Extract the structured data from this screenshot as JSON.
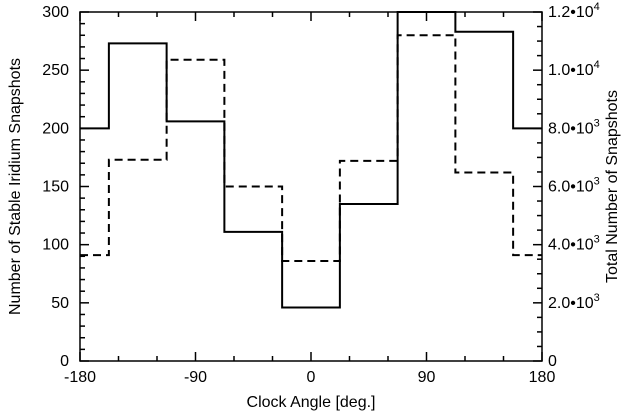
{
  "chart_data": {
    "type": "histogram",
    "xlabel": "Clock Angle [deg.]",
    "ylabel": "Number of Stable Iridium Snapshots",
    "y2label": "Total Number of Snapshots",
    "xlim": [
      -180,
      180
    ],
    "ylim": [
      0,
      300
    ],
    "y2lim": [
      0,
      12000
    ],
    "xticks": [
      -180,
      -90,
      0,
      90,
      180
    ],
    "xtick_labels": [
      "-180",
      "-90",
      "0",
      "90",
      "180"
    ],
    "yticks": [
      0,
      50,
      100,
      150,
      200,
      250,
      300
    ],
    "ytick_labels": [
      "0",
      "50",
      "100",
      "150",
      "200",
      "250",
      "300"
    ],
    "y2ticks": [
      0,
      2000,
      4000,
      6000,
      8000,
      10000,
      12000
    ],
    "y2tick_labels": [
      {
        "base": "0",
        "exp": ""
      },
      {
        "base": "2.0•10",
        "exp": "3"
      },
      {
        "base": "4.0•10",
        "exp": "3"
      },
      {
        "base": "6.0•10",
        "exp": "3"
      },
      {
        "base": "8.0•10",
        "exp": "3"
      },
      {
        "base": "1.0•10",
        "exp": "4"
      },
      {
        "base": "1.2•10",
        "exp": "4"
      }
    ],
    "bin_edges": [
      -180,
      -157.5,
      -112.5,
      -67.5,
      -22.5,
      22.5,
      67.5,
      112.5,
      157.5,
      180
    ],
    "series": [
      {
        "style": "solid",
        "axis": "left",
        "values": [
          200,
          273,
          206,
          111,
          46,
          135,
          300,
          283,
          200
        ]
      },
      {
        "style": "dashed",
        "axis": "right",
        "values": [
          3640,
          6920,
          10360,
          6000,
          3440,
          6880,
          11200,
          6480,
          3640
        ]
      }
    ]
  }
}
